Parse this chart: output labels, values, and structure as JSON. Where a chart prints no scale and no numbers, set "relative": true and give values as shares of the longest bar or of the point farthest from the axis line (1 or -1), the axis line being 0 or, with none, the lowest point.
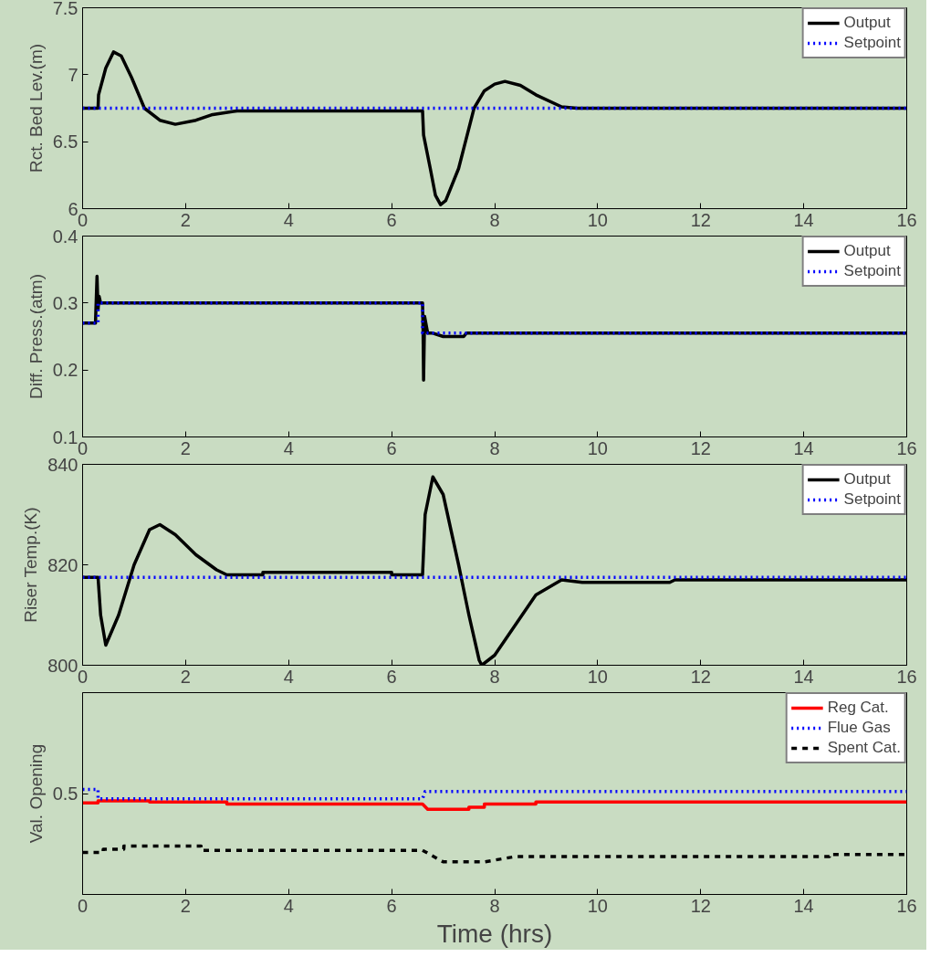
{
  "chart_data": [
    {
      "type": "line",
      "ylabel": "Rct. Bed Lev.(m)",
      "xlim": [
        0,
        16
      ],
      "xticks": [
        0,
        2,
        4,
        6,
        8,
        10,
        12,
        14,
        16
      ],
      "ylim": [
        6,
        7.5
      ],
      "yticks": [
        6,
        {
          "value": 6.5,
          "label": "6.5"
        },
        7,
        7.5
      ],
      "grid": false,
      "legend": "top right",
      "series": [
        {
          "name": "Output",
          "color": "#000000",
          "line_style": "solid",
          "x": [
            0,
            0.3,
            0.31,
            0.45,
            0.6,
            0.75,
            0.95,
            1.2,
            1.5,
            1.8,
            2.2,
            2.5,
            3,
            6.6,
            6.62,
            6.75,
            6.85,
            6.95,
            7.05,
            7.3,
            7.6,
            7.8,
            8,
            8.2,
            8.5,
            8.8,
            9.3,
            9.6,
            16
          ],
          "values": [
            6.75,
            6.75,
            6.85,
            7.05,
            7.17,
            7.14,
            6.98,
            6.75,
            6.66,
            6.63,
            6.66,
            6.7,
            6.73,
            6.73,
            6.55,
            6.3,
            6.1,
            6.03,
            6.06,
            6.3,
            6.75,
            6.88,
            6.93,
            6.95,
            6.92,
            6.85,
            6.76,
            6.75,
            6.75
          ]
        },
        {
          "name": "Setpoint",
          "color": "#0000ff",
          "line_style": "dotted",
          "x": [
            0,
            16
          ],
          "values": [
            6.75,
            6.75
          ]
        }
      ]
    },
    {
      "type": "line",
      "ylabel": "Diff. Press.(atm)",
      "xlim": [
        0,
        16
      ],
      "xticks": [
        0,
        2,
        4,
        6,
        8,
        10,
        12,
        14,
        16
      ],
      "ylim": [
        0.1,
        0.4
      ],
      "yticks": [
        0.1,
        0.2,
        0.3,
        0.4
      ],
      "grid": false,
      "legend": "top right",
      "series": [
        {
          "name": "Output",
          "color": "#000000",
          "line_style": "solid",
          "x": [
            0,
            0.25,
            0.28,
            0.3,
            0.32,
            0.35,
            6.6,
            6.61,
            6.62,
            6.64,
            6.7,
            6.8,
            7.0,
            7.4,
            7.45,
            16
          ],
          "values": [
            0.27,
            0.27,
            0.34,
            0.29,
            0.31,
            0.3,
            0.3,
            0.26,
            0.185,
            0.28,
            0.255,
            0.255,
            0.25,
            0.25,
            0.255,
            0.255
          ]
        },
        {
          "name": "Setpoint",
          "color": "#0000ff",
          "line_style": "dotted",
          "x": [
            0,
            0.3,
            0.3,
            6.6,
            6.6,
            16
          ],
          "values": [
            0.27,
            0.27,
            0.3,
            0.3,
            0.255,
            0.255
          ]
        }
      ]
    },
    {
      "type": "line",
      "ylabel": "Riser Temp.(K)",
      "xlim": [
        0,
        16
      ],
      "xticks": [
        0,
        2,
        4,
        6,
        8,
        10,
        12,
        14,
        16
      ],
      "ylim": [
        800,
        840
      ],
      "yticks": [
        800,
        820,
        840
      ],
      "grid": false,
      "legend": "top right",
      "series": [
        {
          "name": "Output",
          "color": "#000000",
          "line_style": "solid",
          "x": [
            0,
            0.3,
            0.35,
            0.45,
            0.7,
            1.0,
            1.3,
            1.5,
            1.8,
            2.2,
            2.6,
            2.8,
            3.5,
            3.5,
            6,
            6,
            6.6,
            6.65,
            6.8,
            7.0,
            7.3,
            7.5,
            7.7,
            7.75,
            8.0,
            8.4,
            8.8,
            9.3,
            9.7,
            11.4,
            11.5,
            16
          ],
          "values": [
            817.5,
            817.5,
            810,
            804,
            810,
            820,
            827,
            828,
            826,
            822,
            819,
            818,
            818,
            818.5,
            818.5,
            818,
            818,
            830,
            837.5,
            834,
            820,
            810,
            801,
            800,
            802,
            808,
            814,
            817,
            816.5,
            816.5,
            817,
            817
          ]
        },
        {
          "name": "Setpoint",
          "color": "#0000ff",
          "line_style": "dotted",
          "x": [
            0,
            16
          ],
          "values": [
            817.5,
            817.5
          ]
        }
      ]
    },
    {
      "type": "line",
      "ylabel": "Val. Opening",
      "xlabel": "Time (hrs)",
      "xlim": [
        0,
        16
      ],
      "xticks": [
        0,
        2,
        4,
        6,
        8,
        10,
        12,
        14,
        16
      ],
      "relative": true,
      "annotations": [
        "0.5"
      ],
      "grid": false,
      "legend": "top right",
      "series": [
        {
          "name": "Reg Cat.",
          "color": "#ff0000",
          "line_style": "solid",
          "x": [
            0,
            0.3,
            0.3,
            1.3,
            1.3,
            2.8,
            2.8,
            6.6,
            6.7,
            7.5,
            7.5,
            7.8,
            7.8,
            8.8,
            8.8,
            16
          ],
          "values": [
            0.87,
            0.87,
            0.89,
            0.89,
            0.88,
            0.88,
            0.86,
            0.86,
            0.81,
            0.81,
            0.83,
            0.83,
            0.86,
            0.86,
            0.88,
            0.88
          ]
        },
        {
          "name": "Flue Gas",
          "color": "#0000ff",
          "line_style": "dotted",
          "x": [
            0,
            0.3,
            0.3,
            6.6,
            6.65,
            16
          ],
          "values": [
            1,
            1,
            0.91,
            0.91,
            0.98,
            0.98
          ]
        },
        {
          "name": "Spent Cat.",
          "color": "#000000",
          "line_style": "dashed",
          "x": [
            0,
            0.4,
            0.4,
            0.8,
            0.8,
            2.3,
            2.3,
            6.6,
            7.0,
            7.8,
            8.4,
            14.5,
            14.5,
            16
          ],
          "values": [
            0.4,
            0.4,
            0.43,
            0.43,
            0.46,
            0.46,
            0.42,
            0.42,
            0.31,
            0.31,
            0.36,
            0.36,
            0.38,
            0.38
          ]
        }
      ]
    }
  ]
}
